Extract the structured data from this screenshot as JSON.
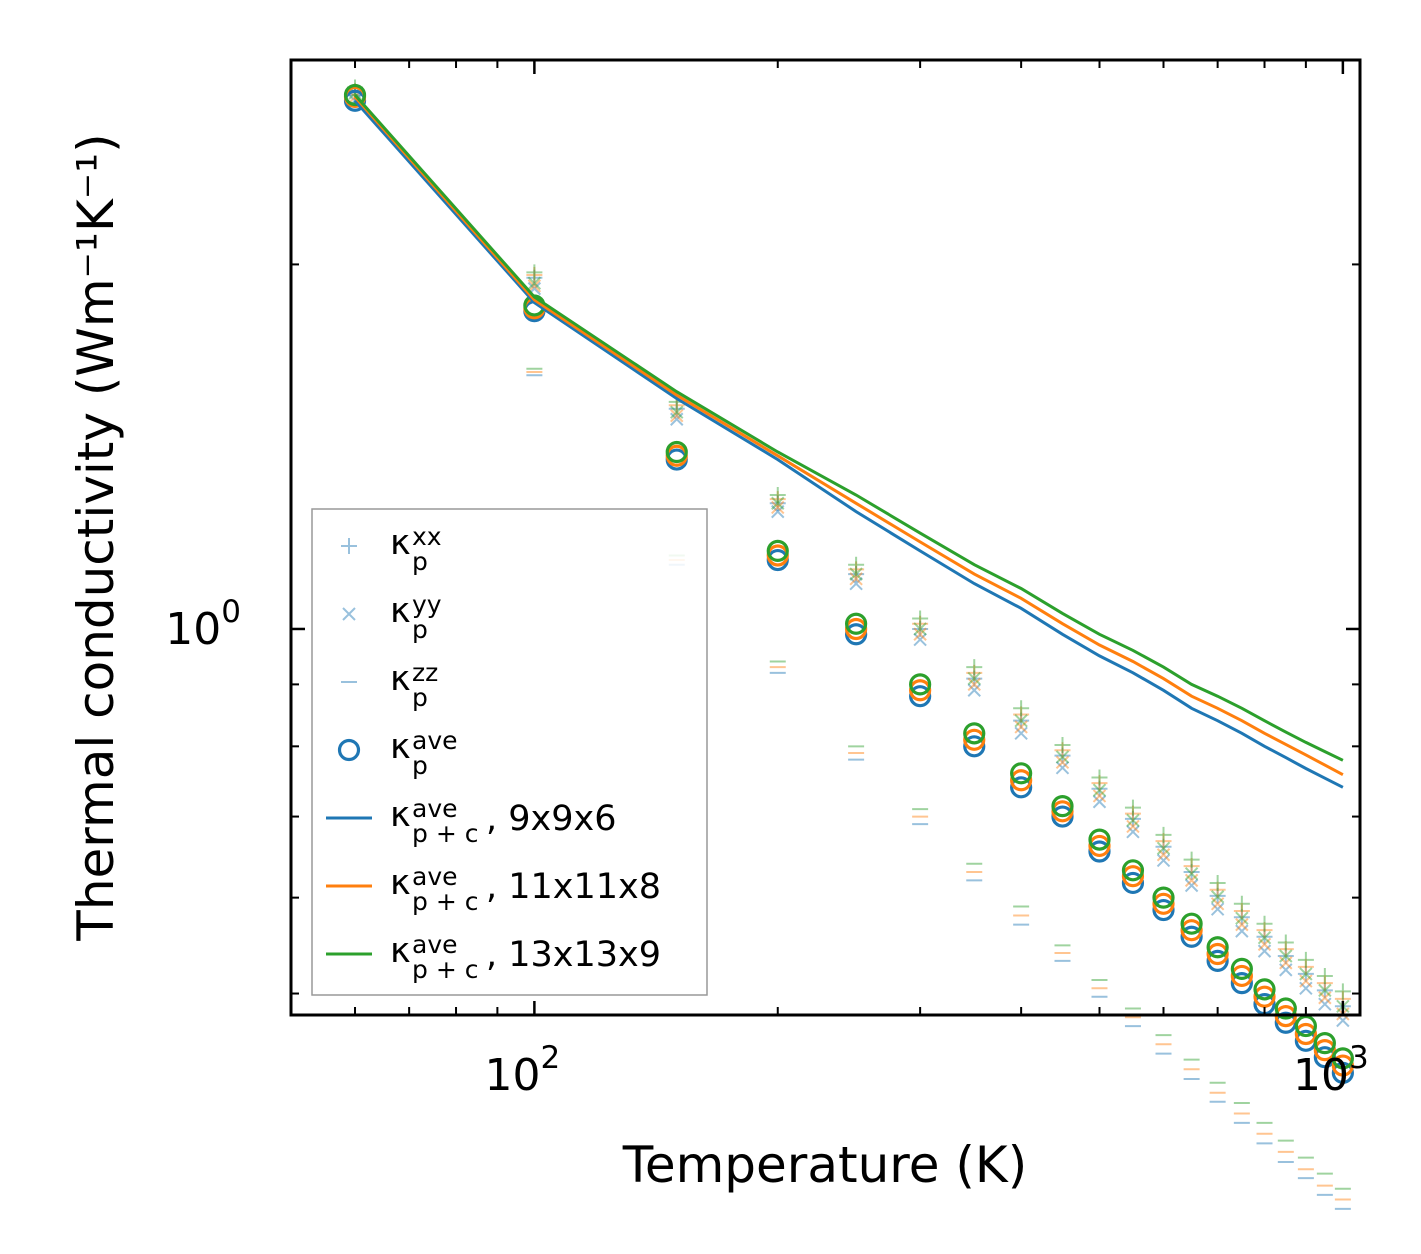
{
  "chart_data": {
    "type": "scatter",
    "xscale": "log",
    "yscale": "log",
    "xlabel": "Temperature (K)",
    "ylabel": "Thermal conductivity (Wm⁻¹K⁻¹)",
    "xlim": [
      50,
      1050
    ],
    "ylim": [
      0.48,
      2.95
    ],
    "x_major_ticks": [
      {
        "value": 100,
        "label": "10",
        "exp": "2"
      },
      {
        "value": 1000,
        "label": "10",
        "exp": "3"
      }
    ],
    "y_major_ticks": [
      {
        "value": 1.0,
        "label": "10",
        "exp": "0"
      }
    ],
    "temperatures": [
      60,
      100,
      150,
      200,
      250,
      300,
      350,
      400,
      450,
      500,
      550,
      600,
      650,
      700,
      750,
      800,
      850,
      900,
      950,
      1000
    ],
    "series": [
      {
        "name": "9x9x6",
        "color": "#1f77b4",
        "kxx": [
          2.76,
          1.95,
          1.52,
          1.27,
          1.11,
          1.0,
          0.91,
          0.84,
          0.786,
          0.738,
          0.697,
          0.661,
          0.63,
          0.602,
          0.578,
          0.557,
          0.537,
          0.519,
          0.503,
          0.488
        ],
        "kyy": [
          2.73,
          1.91,
          1.49,
          1.25,
          1.09,
          0.98,
          0.89,
          0.82,
          0.768,
          0.72,
          0.68,
          0.644,
          0.614,
          0.587,
          0.563,
          0.542,
          0.523,
          0.505,
          0.49,
          0.475
        ],
        "kzz": [
          2.7,
          1.62,
          1.13,
          0.92,
          0.78,
          0.69,
          0.62,
          0.57,
          0.532,
          0.497,
          0.47,
          0.446,
          0.425,
          0.407,
          0.391,
          0.376,
          0.363,
          0.352,
          0.341,
          0.332
        ],
        "kave": [
          2.73,
          1.83,
          1.38,
          1.14,
          0.99,
          0.88,
          0.8,
          0.74,
          0.7,
          0.655,
          0.617,
          0.586,
          0.557,
          0.532,
          0.51,
          0.49,
          0.473,
          0.457,
          0.443,
          0.43
        ],
        "kpc": [
          2.73,
          1.86,
          1.55,
          1.38,
          1.25,
          1.16,
          1.09,
          1.04,
          0.99,
          0.95,
          0.92,
          0.89,
          0.86,
          0.84,
          0.82,
          0.8,
          0.783,
          0.767,
          0.753,
          0.74
        ]
      },
      {
        "name": "11x11x8",
        "color": "#ff7f0e",
        "kxx": [
          2.78,
          1.96,
          1.53,
          1.28,
          1.12,
          1.01,
          0.92,
          0.85,
          0.794,
          0.746,
          0.704,
          0.668,
          0.637,
          0.609,
          0.585,
          0.564,
          0.544,
          0.526,
          0.51,
          0.495
        ],
        "kyy": [
          2.75,
          1.92,
          1.5,
          1.26,
          1.1,
          0.99,
          0.9,
          0.83,
          0.776,
          0.728,
          0.687,
          0.651,
          0.62,
          0.593,
          0.57,
          0.549,
          0.53,
          0.512,
          0.496,
          0.481
        ],
        "kzz": [
          2.71,
          1.63,
          1.14,
          0.93,
          0.79,
          0.7,
          0.63,
          0.58,
          0.54,
          0.505,
          0.478,
          0.454,
          0.433,
          0.414,
          0.398,
          0.383,
          0.37,
          0.358,
          0.347,
          0.338
        ],
        "kave": [
          2.75,
          1.84,
          1.39,
          1.15,
          1.0,
          0.89,
          0.81,
          0.75,
          0.707,
          0.662,
          0.625,
          0.593,
          0.564,
          0.539,
          0.517,
          0.497,
          0.479,
          0.463,
          0.449,
          0.436
        ],
        "kpc": [
          2.75,
          1.87,
          1.56,
          1.39,
          1.27,
          1.18,
          1.11,
          1.06,
          1.01,
          0.97,
          0.94,
          0.91,
          0.88,
          0.86,
          0.84,
          0.82,
          0.803,
          0.787,
          0.772,
          0.758
        ]
      },
      {
        "name": "13x13x9",
        "color": "#2ca02c",
        "kxx": [
          2.8,
          1.97,
          1.54,
          1.29,
          1.13,
          1.02,
          0.93,
          0.86,
          0.802,
          0.754,
          0.712,
          0.676,
          0.645,
          0.617,
          0.593,
          0.571,
          0.551,
          0.533,
          0.517,
          0.502
        ],
        "kyy": [
          2.77,
          1.93,
          1.51,
          1.27,
          1.11,
          1.0,
          0.91,
          0.84,
          0.784,
          0.736,
          0.695,
          0.659,
          0.628,
          0.601,
          0.577,
          0.556,
          0.537,
          0.519,
          0.503,
          0.488
        ],
        "kzz": [
          2.72,
          1.64,
          1.15,
          0.94,
          0.8,
          0.71,
          0.64,
          0.59,
          0.548,
          0.513,
          0.486,
          0.462,
          0.441,
          0.422,
          0.406,
          0.391,
          0.378,
          0.366,
          0.355,
          0.345
        ],
        "kave": [
          2.76,
          1.85,
          1.4,
          1.16,
          1.01,
          0.9,
          0.82,
          0.76,
          0.714,
          0.67,
          0.632,
          0.6,
          0.571,
          0.546,
          0.524,
          0.504,
          0.486,
          0.47,
          0.455,
          0.442
        ],
        "kpc": [
          2.76,
          1.88,
          1.57,
          1.4,
          1.29,
          1.2,
          1.13,
          1.08,
          1.03,
          0.99,
          0.96,
          0.93,
          0.9,
          0.88,
          0.86,
          0.84,
          0.822,
          0.806,
          0.792,
          0.779
        ]
      }
    ],
    "legend": {
      "placement": "lower-left",
      "entries": [
        {
          "marker": "plus",
          "main": "κ",
          "sup": "xx",
          "sub": "p",
          "suffix": ""
        },
        {
          "marker": "cross",
          "main": "κ",
          "sup": "yy",
          "sub": "p",
          "suffix": ""
        },
        {
          "marker": "dash",
          "main": "κ",
          "sup": "zz",
          "sub": "p",
          "suffix": ""
        },
        {
          "marker": "circle",
          "main": "κ",
          "sup": "ave",
          "sub": "p",
          "suffix": ""
        },
        {
          "marker": "line",
          "main": "κ",
          "sup": "ave",
          "sub": "p + c",
          "suffix": ", 9x9x6"
        },
        {
          "marker": "line",
          "main": "κ",
          "sup": "ave",
          "sub": "p + c",
          "suffix": ", 11x11x8"
        },
        {
          "marker": "line",
          "main": "κ",
          "sup": "ave",
          "sub": "p + c",
          "suffix": ", 13x13x9"
        }
      ]
    }
  }
}
